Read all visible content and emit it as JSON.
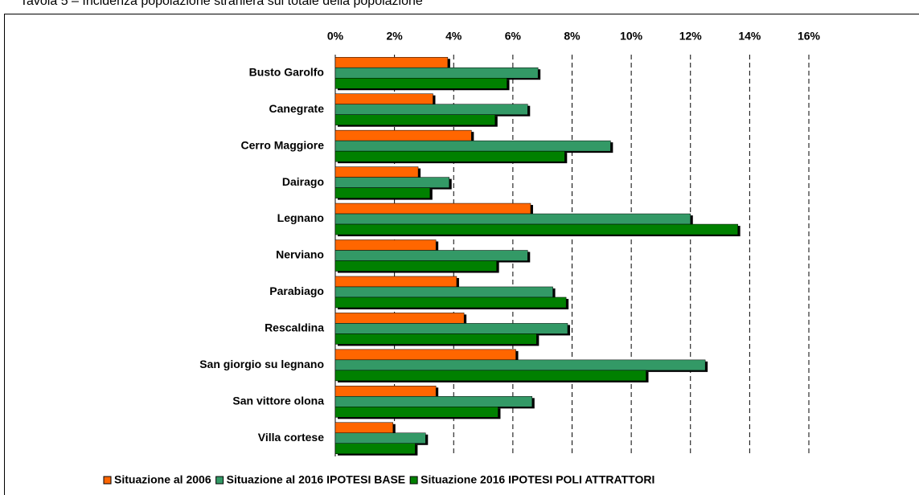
{
  "chart_data": {
    "type": "hbar",
    "title": "Tavola 5 – Incidenza popolazione straniera sul totale della popolazione",
    "categories": [
      "Busto Garolfo",
      "Canegrate",
      "Cerro Maggiore",
      "Dairago",
      "Legnano",
      "Nerviano",
      "Parabiago",
      "Rescaldina",
      "San giorgio su legnano",
      "San vittore olona",
      "Villa cortese"
    ],
    "series": [
      {
        "name": "Situazione al 2006",
        "color": "#ff6600",
        "values": [
          3.8,
          3.3,
          4.6,
          2.8,
          6.6,
          3.4,
          4.1,
          4.35,
          6.1,
          3.4,
          1.95
        ]
      },
      {
        "name": "Situazione al 2016 IPOTESI BASE",
        "color": "#339966",
        "values": [
          6.85,
          6.5,
          9.3,
          3.85,
          12.0,
          6.5,
          7.35,
          7.85,
          12.5,
          6.65,
          3.05
        ]
      },
      {
        "name": "Situazione 2016 IPOTESI POLI ATTRATTORI",
        "color": "#008000",
        "values": [
          5.8,
          5.4,
          7.75,
          3.2,
          13.6,
          5.45,
          7.8,
          6.8,
          10.5,
          5.5,
          2.7
        ]
      }
    ],
    "xlim": [
      0,
      16
    ],
    "xticks": [
      {
        "value": 0,
        "label": "0%"
      },
      {
        "value": 2,
        "label": "2%"
      },
      {
        "value": 4,
        "label": "4%"
      },
      {
        "value": 6,
        "label": "6%"
      },
      {
        "value": 8,
        "label": "8%"
      },
      {
        "value": 10,
        "label": "10%"
      },
      {
        "value": 12,
        "label": "12%"
      },
      {
        "value": 14,
        "label": "14%"
      },
      {
        "value": 16,
        "label": "16%"
      }
    ],
    "grid": true,
    "legend": "bottom"
  }
}
